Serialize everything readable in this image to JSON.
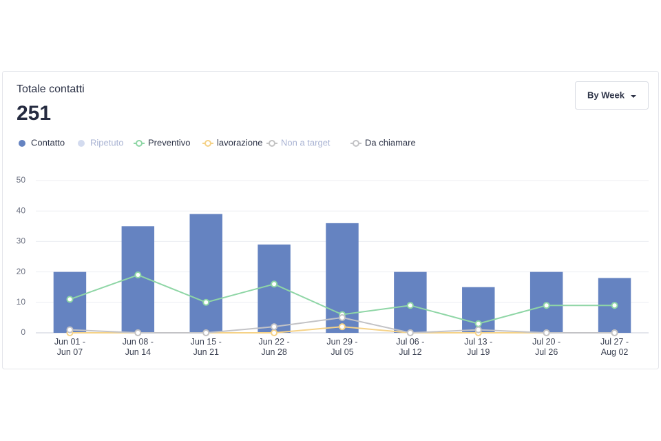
{
  "chart_data": {
    "type": "bar",
    "title": "Totale contatti",
    "total": "251",
    "period_button": "By Week",
    "categories": [
      [
        "Jun 01 -",
        "Jun 07"
      ],
      [
        "Jun 08 -",
        "Jun 14"
      ],
      [
        "Jun 15 -",
        "Jun 21"
      ],
      [
        "Jun 22 -",
        "Jun 28"
      ],
      [
        "Jun 29 -",
        "Jul 05"
      ],
      [
        "Jul 06 -",
        "Jul 12"
      ],
      [
        "Jul 13 -",
        "Jul 19"
      ],
      [
        "Jul 20 -",
        "Jul 26"
      ],
      [
        "Jul 27 -",
        "Aug 02"
      ]
    ],
    "series": [
      {
        "name": "Contatto",
        "type": "bar",
        "color": "#6583c1",
        "values": [
          20,
          35,
          39,
          29,
          36,
          20,
          15,
          20,
          18
        ]
      },
      {
        "name": "Ripetuto",
        "type": "bar",
        "color": "#d3dbef",
        "hidden": true
      },
      {
        "name": "Preventivo",
        "type": "line",
        "color": "#8fd6a6",
        "values": [
          11,
          19,
          10,
          16,
          6,
          9,
          3,
          9,
          9
        ]
      },
      {
        "name": "lavorazione",
        "type": "line",
        "color": "#f5d287",
        "values": [
          0,
          0,
          0,
          0,
          2,
          0,
          0,
          0,
          0
        ]
      },
      {
        "name": "Non a target",
        "type": "line",
        "color": "#c3c3c3",
        "hidden": true
      },
      {
        "name": "Da chiamare",
        "type": "line",
        "color": "#c3c3c6",
        "values": [
          1,
          0,
          0,
          2,
          5,
          0,
          1,
          0,
          0
        ]
      }
    ],
    "ylim": [
      0,
      50
    ],
    "yticks": [
      0,
      10,
      20,
      30,
      40,
      50
    ],
    "grid": true
  }
}
